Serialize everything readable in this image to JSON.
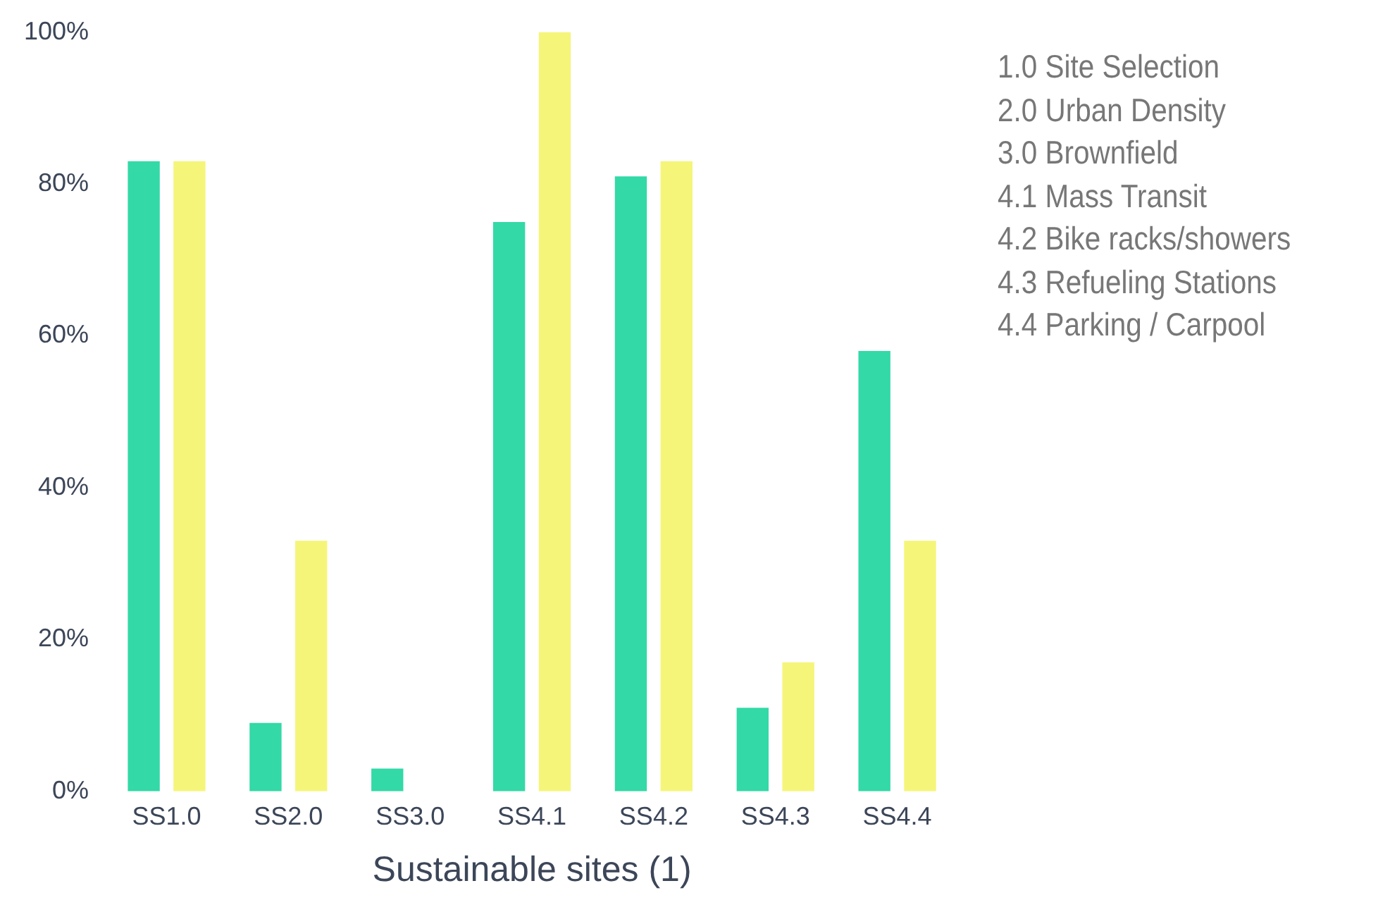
{
  "chart_data": {
    "type": "bar",
    "xlabel": "Sustainable sites (1)",
    "categories": [
      "SS1.0",
      "SS2.0",
      "SS3.0",
      "SS4.1",
      "SS4.2",
      "SS4.3",
      "SS4.4"
    ],
    "series": [
      {
        "color": "#33d9a6",
        "values": [
          83,
          9,
          3,
          75,
          81,
          11,
          58
        ]
      },
      {
        "color": "#f5f57a",
        "values": [
          83,
          33,
          0,
          100,
          83,
          17,
          33
        ]
      }
    ],
    "ylim": [
      0,
      100
    ],
    "yticks": [
      {
        "value": 0,
        "label": "0%"
      },
      {
        "value": 20,
        "label": "20%"
      },
      {
        "value": 40,
        "label": "40%"
      },
      {
        "value": 60,
        "label": "60%"
      },
      {
        "value": 80,
        "label": "80%"
      },
      {
        "value": 100,
        "label": "100%"
      }
    ],
    "grid": false,
    "legend": false,
    "annotations": [
      "1.0 Site Selection",
      "2.0 Urban Density",
      "3.0 Brownfield",
      "4.1 Mass Transit",
      "4.2 Bike racks/showers",
      "4.3 Refueling Stations",
      "4.4 Parking / Carpool"
    ]
  }
}
